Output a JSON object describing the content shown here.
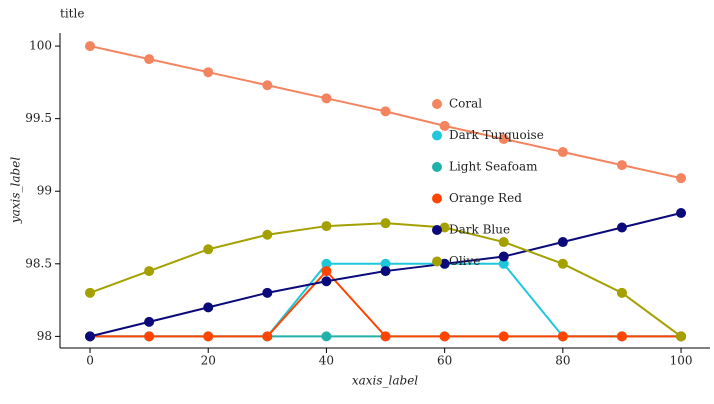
{
  "chart_data": {
    "type": "line",
    "title": "title",
    "x_label": "xaxis_label",
    "y_label": "yaxis_label",
    "x": [
      0,
      10,
      20,
      30,
      40,
      50,
      60,
      70,
      80,
      90,
      100
    ],
    "series": [
      {
        "name": "Coral",
        "color": "#f4845f",
        "values": [
          100,
          99.91,
          99.82,
          99.73,
          99.64,
          99.55,
          99.45,
          99.36,
          99.27,
          99.18,
          99.09
        ]
      },
      {
        "name": "Dark Turquoise",
        "color": "#1ec8da",
        "values": [
          98,
          98,
          98,
          98,
          98.5,
          98.5,
          98.5,
          98.5,
          98,
          98,
          98
        ]
      },
      {
        "name": "Light Seafoam",
        "color": "#20b2aa",
        "values": [
          98,
          98,
          98,
          98,
          98,
          98,
          98,
          98,
          98,
          98,
          98
        ]
      },
      {
        "name": "Orange Red",
        "color": "#ff4500",
        "values": [
          98,
          98,
          98,
          98,
          98.45,
          98,
          98,
          98,
          98,
          98,
          98
        ]
      },
      {
        "name": "Dark Blue",
        "color": "#0a0a7a",
        "values": [
          98,
          98.1,
          98.2,
          98.3,
          98.38,
          98.45,
          98.5,
          98.55,
          98.65,
          98.75,
          98.85
        ]
      },
      {
        "name": "Olive",
        "color": "#a3a000",
        "values": [
          98.3,
          98.45,
          98.6,
          98.7,
          98.76,
          98.78,
          98.75,
          98.65,
          98.5,
          98.3,
          98
        ]
      }
    ],
    "xlim": [
      -5.08,
      104.9
    ],
    "ylim": [
      97.92,
      100.09
    ],
    "xticks": [
      0,
      20,
      40,
      60,
      80,
      100
    ],
    "yticks": [
      98,
      98.5,
      99,
      99.5,
      100
    ],
    "grid": false,
    "legend": "right"
  }
}
